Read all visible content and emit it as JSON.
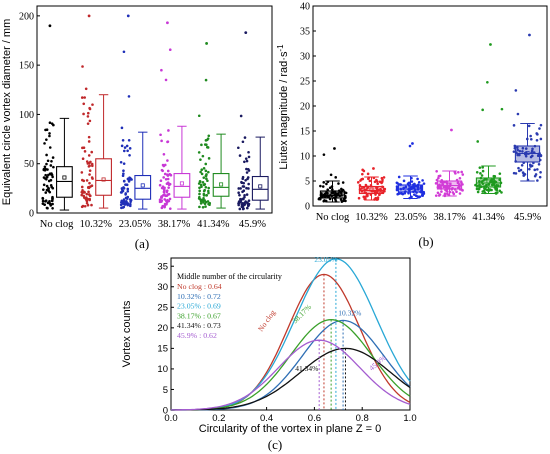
{
  "panel_labels": [
    "(a)",
    "(b)",
    "(c)"
  ],
  "chart_data": [
    {
      "type": "box",
      "panel": "(a)",
      "ylabel": "Equivalent circle vortex diameter / mm",
      "ylim": [
        0,
        210
      ],
      "yticks": [
        0,
        50,
        100,
        150,
        200
      ],
      "categories": [
        "No clog",
        "10.32%",
        "23.05%",
        "38.17%",
        "41.34%",
        "45.9%"
      ],
      "colors": [
        "#000000",
        "#c0282b",
        "#1f2fb8",
        "#c838d6",
        "#1f8a1f",
        "#1a1a60"
      ],
      "boxes": [
        {
          "whisker_low": 3,
          "q1": 16,
          "median": 32,
          "mean": 36,
          "q3": 47,
          "whisker_high": 96,
          "max": 190
        },
        {
          "whisker_low": 5,
          "q1": 18,
          "median": 33,
          "mean": 34,
          "q3": 55,
          "whisker_high": 120,
          "max": 200
        },
        {
          "whisker_low": 4,
          "q1": 14,
          "median": 25,
          "mean": 28,
          "q3": 38,
          "whisker_high": 82,
          "max": 200
        },
        {
          "whisker_low": 4,
          "q1": 16,
          "median": 27,
          "mean": 30,
          "q3": 40,
          "whisker_high": 88,
          "max": 193
        },
        {
          "whisker_low": 5,
          "q1": 17,
          "median": 26,
          "mean": 29,
          "q3": 40,
          "whisker_high": 80,
          "max": 172
        },
        {
          "whisker_low": 4,
          "q1": 13,
          "median": 24,
          "mean": 27,
          "q3": 37,
          "whisker_high": 77,
          "max": 183
        }
      ]
    },
    {
      "type": "box",
      "panel": "(b)",
      "ylabel": "Liutex magnitude / rad·s",
      "ylabel_sup": "-1",
      "ylim": [
        0,
        40
      ],
      "yticks": [
        0,
        5,
        10,
        15,
        20,
        25,
        30,
        35,
        40
      ],
      "categories": [
        "No clog",
        "10.32%",
        "23.05%",
        "38.17%",
        "41.34%",
        "45.9%"
      ],
      "colors": [
        "#000000",
        "#e8232a",
        "#1f2fe0",
        "#d23cd6",
        "#1f9a1f",
        "#2a3ab0"
      ],
      "boxes": [
        {
          "whisker_low": 0.8,
          "q1": 1.6,
          "median": 2.2,
          "mean": 2.4,
          "q3": 3.0,
          "whisker_high": 5.0,
          "max": 11.5
        },
        {
          "whisker_low": 1.2,
          "q1": 2.5,
          "median": 3.1,
          "mean": 3.3,
          "q3": 3.9,
          "whisker_high": 5.8,
          "max": 7.5
        },
        {
          "whisker_low": 1.5,
          "q1": 2.8,
          "median": 3.4,
          "mean": 3.6,
          "q3": 4.2,
          "whisker_high": 6.0,
          "max": 12.5
        },
        {
          "whisker_low": 2.0,
          "q1": 3.4,
          "median": 4.1,
          "mean": 4.3,
          "q3": 5.0,
          "whisker_high": 7.0,
          "max": 15.2
        },
        {
          "whisker_low": 2.5,
          "q1": 3.8,
          "median": 4.6,
          "mean": 4.9,
          "q3": 5.6,
          "whisker_high": 8.0,
          "max": 32.3
        },
        {
          "whisker_low": 5.0,
          "q1": 8.8,
          "median": 10.5,
          "mean": 10.6,
          "q3": 12.0,
          "whisker_high": 16.5,
          "max": 34.2
        }
      ]
    },
    {
      "type": "line",
      "panel": "(c)",
      "xlabel": "Circularity of the vortex in plane Z = 0",
      "ylabel": "Vortex counts",
      "xlim": [
        0,
        1.0
      ],
      "ylim": [
        0,
        37
      ],
      "xticks": [
        0.0,
        0.2,
        0.4,
        0.6,
        0.8,
        1.0
      ],
      "yticks": [
        0,
        5,
        10,
        15,
        20,
        25,
        30,
        35
      ],
      "legend_title": "Middle number of the circularity",
      "series": [
        {
          "name": "No clog",
          "legend": "No clog : 0.64",
          "color": "#c0392b",
          "peak_x": 0.64,
          "peak_y": 33.0,
          "width": 0.15
        },
        {
          "name": "10.32%",
          "legend": "10.32% : 0.72",
          "color": "#2f6fb5",
          "peak_x": 0.72,
          "peak_y": 21.8,
          "width": 0.17
        },
        {
          "name": "23.05%",
          "legend": "23.05% : 0.69",
          "color": "#29a8d6",
          "peak_x": 0.69,
          "peak_y": 36.8,
          "width": 0.17
        },
        {
          "name": "38.17%",
          "legend": "38.17% : 0.67",
          "color": "#3aa02a",
          "peak_x": 0.67,
          "peak_y": 22.0,
          "width": 0.17
        },
        {
          "name": "41.34%",
          "legend": "41.34% : 0.73",
          "color": "#111111",
          "peak_x": 0.73,
          "peak_y": 15.0,
          "width": 0.19
        },
        {
          "name": "45.9%",
          "legend": "45.9%   : 0.62",
          "color": "#a45cd0",
          "peak_x": 0.62,
          "peak_y": 17.0,
          "width": 0.17
        }
      ],
      "curve_labels": [
        "23.05%",
        "10.32%",
        "38.17%",
        "No clog",
        "41.34%",
        "45.9%"
      ]
    }
  ]
}
